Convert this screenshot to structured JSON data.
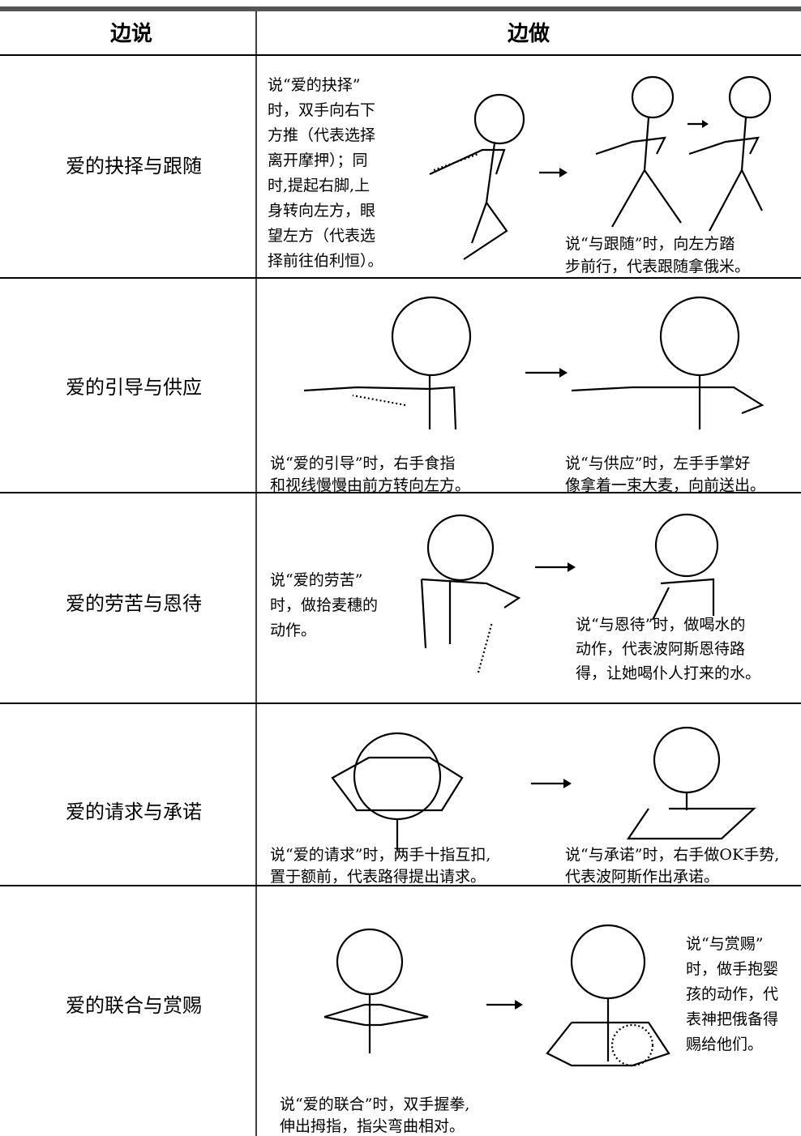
{
  "header": {
    "left": "边说",
    "right": "边做"
  },
  "rows": [
    {
      "say": "爱的抉择与跟随",
      "captions": [
        [
          "说“爱的抉择”",
          "时，双手向右下",
          "方推（代表选择",
          "离开摩押）；同",
          "时,提起右脚,上",
          "身转向左方，眼",
          "望左方（代表选",
          "择前往伯利恒）。"
        ],
        [
          "说“与跟随”时，向左方踏",
          "步前行，代表跟随拿俄米。"
        ]
      ]
    },
    {
      "say": "爱的引导与供应",
      "captions": [
        [
          "说“爱的引导”时，右手食指",
          "和视线慢慢由前方转向左方。"
        ],
        [
          "说“与供应”时，左手手掌好",
          "像拿着一束大麦，向前送出。"
        ]
      ]
    },
    {
      "say": "爱的劳苦与恩待",
      "captions": [
        [
          "说“爱的劳苦”",
          "时，做拾麦穗的",
          "动作。"
        ],
        [
          "说“与恩待”时，做喝水的",
          "动作，代表波阿斯恩待路",
          "得，让她喝仆人打来的水。"
        ]
      ]
    },
    {
      "say": "爱的请求与承诺",
      "captions": [
        [
          "说“爱的请求”时，两手十指互扣,",
          "置于额前，代表路得提出请求。"
        ],
        [
          "说“与承诺”时，右手做OK手势,",
          "代表波阿斯作出承诺。"
        ]
      ]
    },
    {
      "say": "爱的联合与赏赐",
      "captions": [
        [
          "说“爱的联合”时，双手握拳,",
          "伸出拇指，指尖弯曲相对。"
        ],
        [
          "说“与赏赐”",
          "时，做手抱婴",
          "孩的动作，代",
          "表神把俄备得",
          "赐给他们。"
        ]
      ]
    }
  ]
}
